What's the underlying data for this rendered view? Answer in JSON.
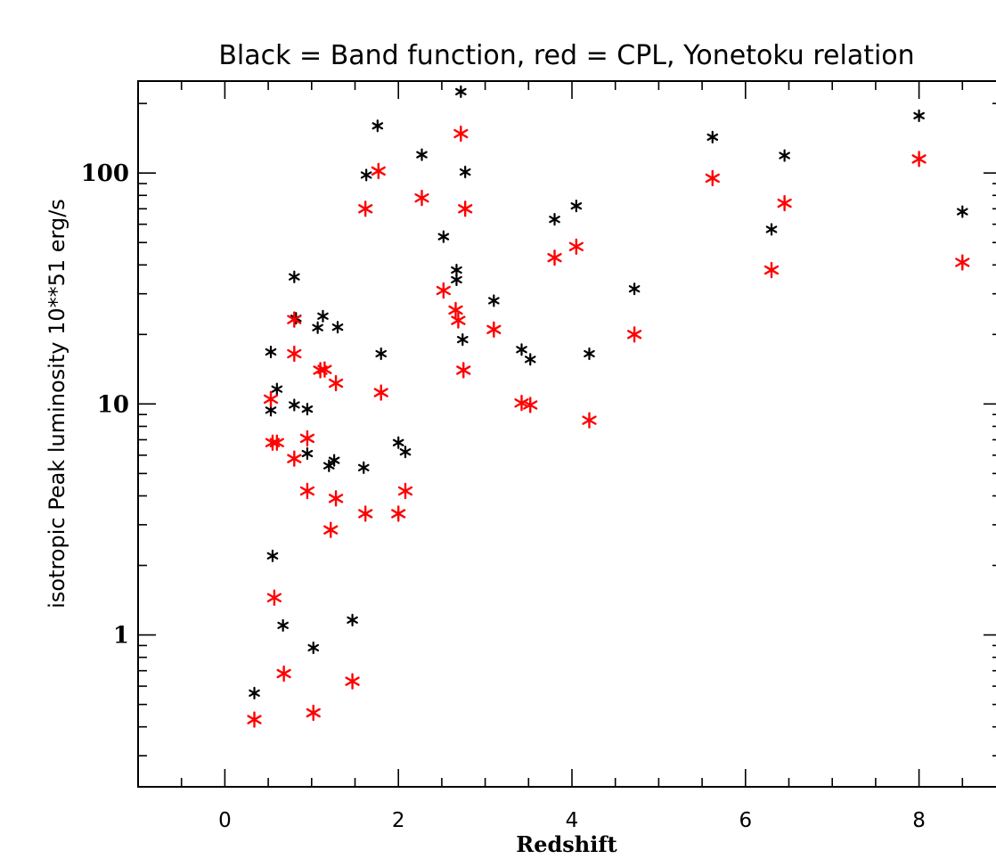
{
  "chart_data": {
    "type": "scatter",
    "title": "Black =  Band function, red = CPL, Yonetoku relation",
    "xlabel": "Redshift",
    "ylabel": "isotropic Peak luminosity 10**51 erg/s",
    "xlim": [
      -1,
      9
    ],
    "ylim": [
      0.22,
      250
    ],
    "yscale": "log",
    "x_ticks": [
      0,
      2,
      4,
      6,
      8
    ],
    "x_tick_labels": [
      "0",
      "2",
      "4",
      "6",
      "8"
    ],
    "y_ticks": [
      1,
      10,
      100
    ],
    "y_tick_labels": [
      "1",
      "10",
      "100"
    ],
    "grid": false,
    "legend": "none",
    "series": [
      {
        "color": "#000000",
        "marker": "asterisk",
        "points": [
          [
            0.34,
            0.56
          ],
          [
            0.53,
            16.8
          ],
          [
            0.53,
            9.4
          ],
          [
            0.55,
            2.2
          ],
          [
            0.6,
            11.6
          ],
          [
            0.67,
            1.1
          ],
          [
            0.8,
            35.5
          ],
          [
            0.8,
            9.9
          ],
          [
            0.82,
            23.5
          ],
          [
            0.95,
            9.5
          ],
          [
            0.95,
            6.1
          ],
          [
            1.02,
            0.88
          ],
          [
            1.07,
            21.4
          ],
          [
            1.13,
            24.0
          ],
          [
            1.2,
            5.4
          ],
          [
            1.26,
            5.7
          ],
          [
            1.3,
            21.5
          ],
          [
            1.47,
            1.16
          ],
          [
            1.63,
            98.0
          ],
          [
            1.6,
            5.3
          ],
          [
            1.76,
            160.0
          ],
          [
            1.8,
            16.5
          ],
          [
            2.0,
            6.8
          ],
          [
            2.08,
            6.2
          ],
          [
            2.27,
            120.0
          ],
          [
            2.52,
            53.0
          ],
          [
            2.67,
            38.0
          ],
          [
            2.67,
            34.5
          ],
          [
            2.72,
            225.0
          ],
          [
            2.77,
            101.0
          ],
          [
            2.74,
            19.0
          ],
          [
            3.1,
            28.0
          ],
          [
            3.42,
            17.2
          ],
          [
            3.52,
            15.6
          ],
          [
            3.8,
            63.0
          ],
          [
            4.05,
            72.0
          ],
          [
            4.2,
            16.5
          ],
          [
            4.72,
            31.5
          ],
          [
            5.62,
            143.0
          ],
          [
            6.3,
            57.0
          ],
          [
            6.45,
            119.0
          ],
          [
            8.0,
            177.0
          ],
          [
            8.5,
            68.0
          ]
        ]
      },
      {
        "color": "#ff0000",
        "marker": "asterisk",
        "points": [
          [
            0.34,
            0.43
          ],
          [
            0.53,
            10.5
          ],
          [
            0.55,
            6.8
          ],
          [
            0.57,
            1.45
          ],
          [
            0.6,
            6.8
          ],
          [
            0.68,
            0.68
          ],
          [
            0.8,
            23.2
          ],
          [
            0.8,
            16.5
          ],
          [
            0.8,
            5.8
          ],
          [
            0.95,
            7.1
          ],
          [
            0.95,
            4.2
          ],
          [
            1.02,
            0.46
          ],
          [
            1.1,
            14.0
          ],
          [
            1.15,
            14.1
          ],
          [
            1.22,
            2.85
          ],
          [
            1.28,
            12.3
          ],
          [
            1.28,
            3.9
          ],
          [
            1.47,
            0.63
          ],
          [
            1.62,
            70.0
          ],
          [
            1.62,
            3.35
          ],
          [
            1.77,
            102.0
          ],
          [
            1.8,
            11.2
          ],
          [
            2.0,
            3.35
          ],
          [
            2.08,
            4.2
          ],
          [
            2.27,
            78.0
          ],
          [
            2.52,
            31.0
          ],
          [
            2.66,
            25.5
          ],
          [
            2.69,
            23.0
          ],
          [
            2.72,
            148.0
          ],
          [
            2.77,
            70.0
          ],
          [
            2.75,
            14.0
          ],
          [
            3.1,
            21.0
          ],
          [
            3.42,
            10.1
          ],
          [
            3.52,
            9.9
          ],
          [
            3.8,
            43.0
          ],
          [
            4.05,
            48.0
          ],
          [
            4.2,
            8.5
          ],
          [
            4.72,
            20.0
          ],
          [
            5.62,
            95.0
          ],
          [
            6.3,
            38.0
          ],
          [
            6.45,
            74.0
          ],
          [
            8.0,
            115.0
          ],
          [
            8.5,
            41.0
          ]
        ]
      }
    ]
  }
}
